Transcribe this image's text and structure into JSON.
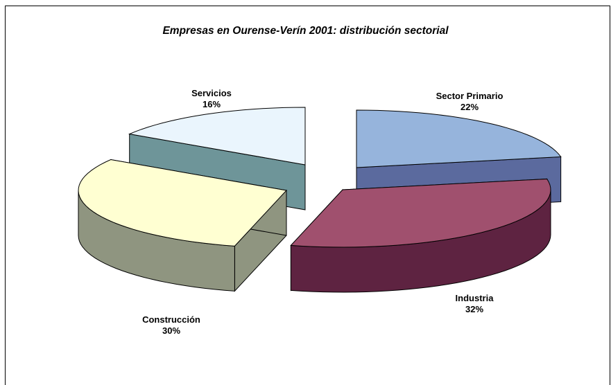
{
  "chart_data": {
    "type": "pie",
    "three_d": true,
    "exploded": true,
    "title": "Empresas en Ourense-Verín 2001: distribución sectorial",
    "slices": [
      {
        "name": "Sector Primario",
        "value": 22,
        "label": "22%",
        "top_color": "#96b4dc",
        "side_color": "#5b6a9e"
      },
      {
        "name": "Industria",
        "value": 32,
        "label": "32%",
        "top_color": "#a0506e",
        "side_color": "#5e2341"
      },
      {
        "name": "Construcción",
        "value": 30,
        "label": "30%",
        "top_color": "#ffffd2",
        "side_color": "#8f9580"
      },
      {
        "name": "Servicios",
        "value": 16,
        "label": "16%",
        "top_color": "#eaf5fd",
        "side_color": "#6e9599"
      }
    ],
    "legend": "none"
  }
}
